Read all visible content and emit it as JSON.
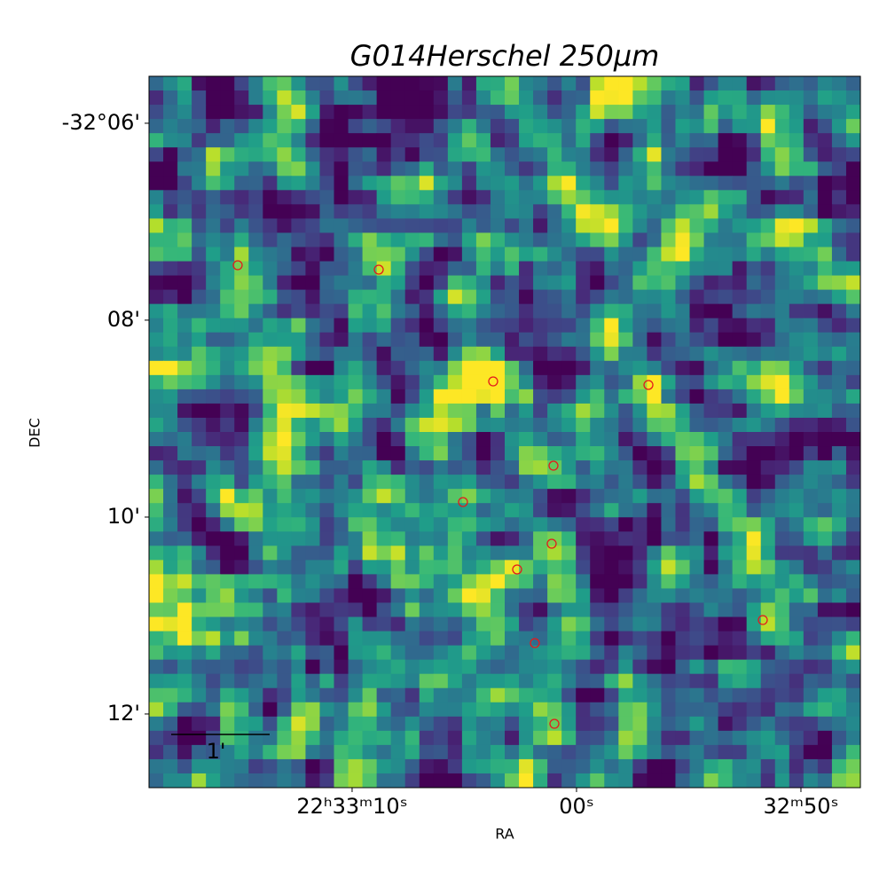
{
  "chart_data": {
    "type": "image",
    "title": "G014Herschel 250μm",
    "x_label": "RA",
    "y_label": "DEC",
    "xlim": [
      338.32938,
      338.19729
    ],
    "ylim": [
      -32.21247,
      -32.09205
    ],
    "xticks": [
      {
        "value": 338.29167,
        "label": "22ʰ33ᵐ10ˢ"
      },
      {
        "value": 338.25,
        "label": "00ˢ"
      },
      {
        "value": 338.20833,
        "label": "32ᵐ50ˢ"
      }
    ],
    "yticks": [
      {
        "value": -32.1,
        "label": "-32°06'"
      },
      {
        "value": -32.13333,
        "label": "08'"
      },
      {
        "value": -32.16667,
        "label": "10'"
      },
      {
        "value": -32.2,
        "label": "12'"
      }
    ],
    "scale_bar": {
      "label": "1'",
      "length": 0.016667
    },
    "sources": {
      "color": "#e41a1c",
      "ra": [
        338.31291,
        338.28672,
        338.26548,
        338.23665,
        338.25428,
        338.27108,
        338.25461,
        338.26103,
        338.21541,
        338.25774,
        338.25411
      ],
      "dec": [
        -32.12403,
        -32.12478,
        -32.1437,
        -32.1443,
        -32.15797,
        -32.16412,
        -32.17118,
        -32.17553,
        -32.18409,
        -32.188,
        -32.20166
      ]
    }
  }
}
